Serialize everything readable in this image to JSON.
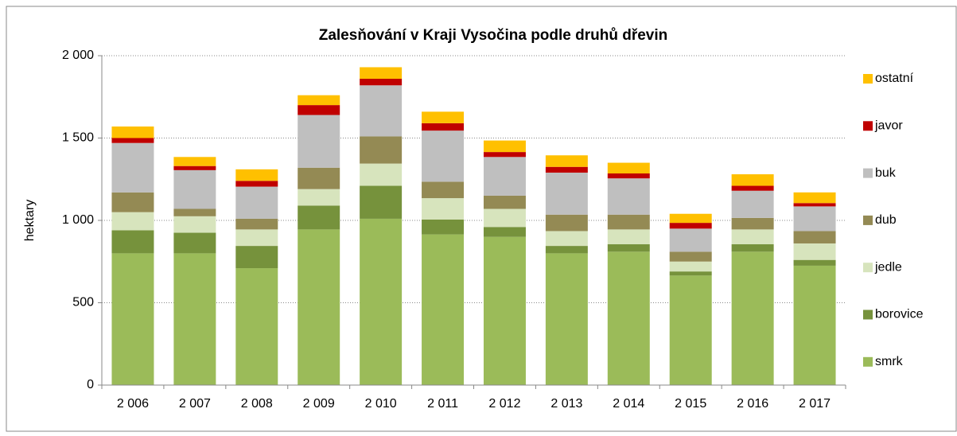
{
  "chart_data": {
    "type": "stacked_bar",
    "title": "Zalesňování v Kraji Vysočina podle druhů dřevin",
    "y_label": "hektary",
    "categories": [
      "2 006",
      "2 007",
      "2 008",
      "2 009",
      "2 010",
      "2 011",
      "2 012",
      "2 013",
      "2 014",
      "2 015",
      "2 016",
      "2 017"
    ],
    "series": [
      {
        "name": "smrk",
        "color": "#9bbb59",
        "values": [
          800,
          800,
          710,
          945,
          1010,
          915,
          900,
          800,
          810,
          665,
          810,
          725
        ]
      },
      {
        "name": "borovice",
        "color": "#76923c",
        "values": [
          140,
          125,
          135,
          145,
          200,
          90,
          60,
          45,
          45,
          25,
          45,
          35
        ]
      },
      {
        "name": "jedle",
        "color": "#d7e4bd",
        "values": [
          110,
          100,
          100,
          100,
          135,
          130,
          110,
          90,
          90,
          60,
          90,
          100
        ]
      },
      {
        "name": "dub",
        "color": "#948a54",
        "values": [
          120,
          45,
          65,
          130,
          165,
          100,
          80,
          100,
          90,
          60,
          70,
          75
        ]
      },
      {
        "name": "buk",
        "color": "#bfbfbf",
        "values": [
          300,
          235,
          195,
          320,
          310,
          310,
          235,
          255,
          220,
          140,
          165,
          150
        ]
      },
      {
        "name": "javor",
        "color": "#c00000",
        "values": [
          30,
          25,
          35,
          60,
          40,
          45,
          30,
          35,
          30,
          35,
          30,
          20
        ]
      },
      {
        "name": "ostatní",
        "color": "#ffc000",
        "values": [
          70,
          55,
          70,
          60,
          70,
          70,
          70,
          70,
          65,
          55,
          70,
          65
        ]
      }
    ],
    "ylim": [
      0,
      2000
    ],
    "yticks": [
      0,
      500,
      {
        "value": 1000,
        "label": "1 000"
      },
      {
        "value": 1500,
        "label": "1 500"
      },
      {
        "value": 2000,
        "label": "2 000"
      }
    ],
    "grid": true,
    "legend": "right"
  }
}
